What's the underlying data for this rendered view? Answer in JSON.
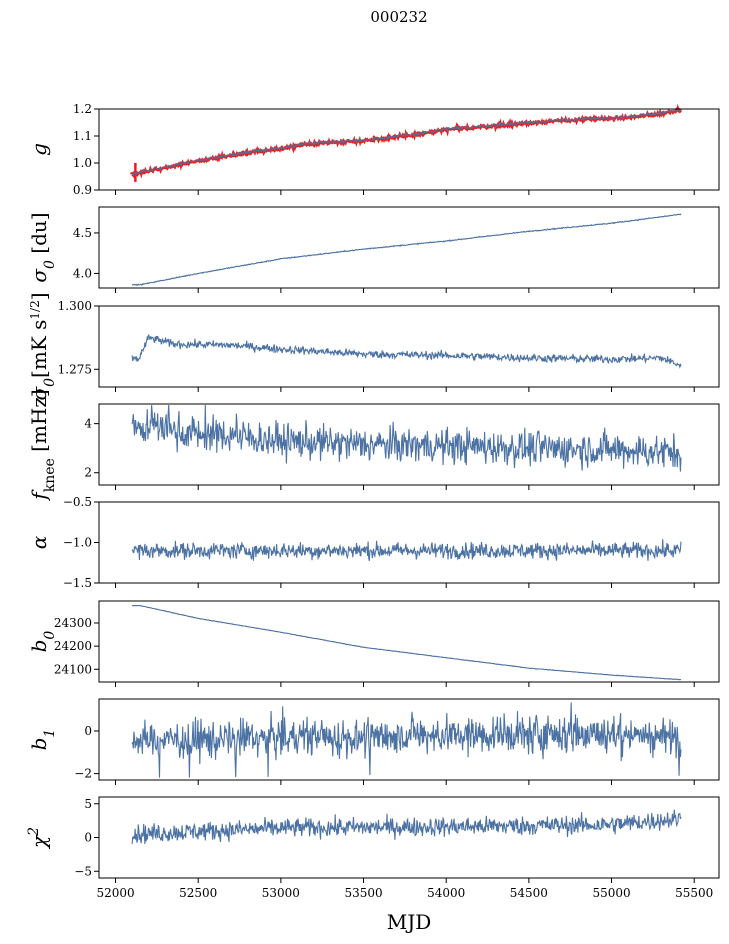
{
  "chart_data": {
    "type": "line",
    "title": "000232",
    "xlabel": "MJD",
    "xlim": [
      51900,
      55650
    ],
    "xticks": [
      52000,
      52500,
      53000,
      53500,
      54000,
      54500,
      55000,
      55500
    ],
    "x_start": 52100,
    "x_end": 55420,
    "colors": {
      "series": "#4c72a4",
      "overlay": "#ee1c1c"
    },
    "panels": [
      {
        "id": "g",
        "ylabel": "g",
        "ylim": [
          0.9,
          1.2
        ],
        "yticks": [
          0.9,
          1.0,
          1.1,
          1.2
        ],
        "ytick_labels": [
          "0.9",
          "1.0",
          "1.1",
          "1.2"
        ],
        "trend": [
          [
            52100,
            0.96
          ],
          [
            52300,
            0.985
          ],
          [
            52500,
            1.01
          ],
          [
            52800,
            1.04
          ],
          [
            53000,
            1.055
          ],
          [
            53200,
            1.075
          ],
          [
            53500,
            1.085
          ],
          [
            53800,
            1.105
          ],
          [
            54000,
            1.125
          ],
          [
            54300,
            1.14
          ],
          [
            54600,
            1.155
          ],
          [
            54900,
            1.165
          ],
          [
            55100,
            1.17
          ],
          [
            55300,
            1.185
          ],
          [
            55420,
            1.2
          ]
        ],
        "noise": 0.003,
        "overlay": true
      },
      {
        "id": "sigma0_du",
        "ylabel": "σ0 [du]",
        "ylim": [
          3.82,
          4.82
        ],
        "yticks": [
          4.0,
          4.5
        ],
        "ytick_labels": [
          "4.0",
          "4.5"
        ],
        "trend": [
          [
            52150,
            3.86
          ],
          [
            52500,
            4.0
          ],
          [
            53000,
            4.18
          ],
          [
            53500,
            4.3
          ],
          [
            54000,
            4.4
          ],
          [
            54500,
            4.52
          ],
          [
            55000,
            4.62
          ],
          [
            55420,
            4.73
          ]
        ],
        "noise": 0.003
      },
      {
        "id": "sigma0_mK",
        "ylabel": "σ0[mK s^1/2]",
        "ylim": [
          1.268,
          1.3
        ],
        "yticks": [
          1.275,
          1.3
        ],
        "ytick_labels": [
          "1.275",
          "1.300"
        ],
        "trend": [
          [
            52100,
            1.2795
          ],
          [
            52140,
            1.279
          ],
          [
            52200,
            1.2875
          ],
          [
            52350,
            1.285
          ],
          [
            52700,
            1.2845
          ],
          [
            53000,
            1.283
          ],
          [
            53500,
            1.281
          ],
          [
            54000,
            1.2805
          ],
          [
            54500,
            1.2795
          ],
          [
            55000,
            1.279
          ],
          [
            55300,
            1.2795
          ],
          [
            55420,
            1.2765
          ]
        ],
        "noise": 0.0008
      },
      {
        "id": "fknee",
        "ylabel": "fknee [mHz]",
        "ylim": [
          1.5,
          4.8
        ],
        "yticks": [
          2,
          4
        ],
        "ytick_labels": [
          "2",
          "4"
        ],
        "trend": [
          [
            52100,
            3.9
          ],
          [
            52500,
            3.6
          ],
          [
            53000,
            3.3
          ],
          [
            53500,
            3.15
          ],
          [
            54000,
            3.1
          ],
          [
            54500,
            3.0
          ],
          [
            55000,
            2.95
          ],
          [
            55420,
            2.8
          ]
        ],
        "noise": 0.35
      },
      {
        "id": "alpha",
        "ylabel": "α",
        "ylim": [
          -1.5,
          -0.5
        ],
        "yticks": [
          -1.5,
          -1.0,
          -0.5
        ],
        "ytick_labels": [
          "−1.5",
          "−1.0",
          "−0.5"
        ],
        "trend": [
          [
            52100,
            -1.1
          ],
          [
            55420,
            -1.1
          ]
        ],
        "noise": 0.05
      },
      {
        "id": "b0",
        "ylabel": "b0",
        "ylim": [
          24045,
          24395
        ],
        "yticks": [
          24100,
          24200,
          24300
        ],
        "ytick_labels": [
          "24100",
          "24200",
          "24300"
        ],
        "trend": [
          [
            52150,
            24375
          ],
          [
            52500,
            24320
          ],
          [
            53000,
            24260
          ],
          [
            53500,
            24195
          ],
          [
            54000,
            24150
          ],
          [
            54500,
            24105
          ],
          [
            55000,
            24075
          ],
          [
            55420,
            24055
          ]
        ],
        "noise": 0.6
      },
      {
        "id": "b1",
        "ylabel": "b1",
        "ylim": [
          -2.3,
          1.5
        ],
        "yticks": [
          -2,
          0
        ],
        "ytick_labels": [
          "−2",
          "0"
        ],
        "trend": [
          [
            52100,
            -0.4
          ],
          [
            53000,
            -0.35
          ],
          [
            54000,
            -0.2
          ],
          [
            55000,
            -0.15
          ],
          [
            55420,
            -0.3
          ]
        ],
        "noise": 0.45
      },
      {
        "id": "chi2",
        "ylabel": "χ2",
        "ylim": [
          -6,
          6
        ],
        "yticks": [
          -5,
          0,
          5
        ],
        "ytick_labels": [
          "−5",
          "0",
          "5"
        ],
        "trend": [
          [
            52100,
            0.5
          ],
          [
            53000,
            1.4
          ],
          [
            54000,
            1.6
          ],
          [
            55000,
            1.9
          ],
          [
            55420,
            2.8
          ]
        ],
        "noise": 0.7
      }
    ]
  }
}
